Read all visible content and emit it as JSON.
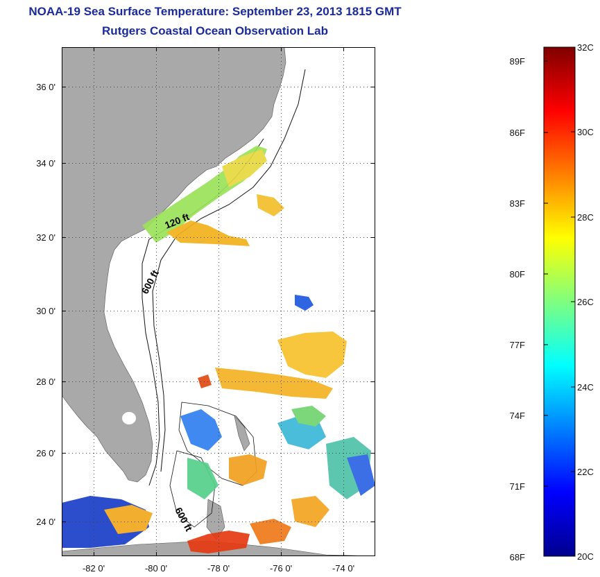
{
  "title": {
    "line1": "NOAA-19 Sea Surface Temperature:  September 23, 2013 1815 GMT",
    "line2": "Rutgers Coastal Ocean Observation Lab"
  },
  "map": {
    "lat_range": [
      23,
      37.2
    ],
    "lon_range": [
      -83,
      -73
    ],
    "lat_ticks": [
      {
        "value": 24,
        "label": "24 0'"
      },
      {
        "value": 26,
        "label": "26 0'"
      },
      {
        "value": 28,
        "label": "28 0'"
      },
      {
        "value": 30,
        "label": "30 0'"
      },
      {
        "value": 32,
        "label": "32 0'"
      },
      {
        "value": 34,
        "label": "34 0'"
      },
      {
        "value": 36,
        "label": "36 0'"
      }
    ],
    "lon_ticks": [
      {
        "value": -82,
        "label": "-82 0'"
      },
      {
        "value": -80,
        "label": "-80 0'"
      },
      {
        "value": -78,
        "label": "-78 0'"
      },
      {
        "value": -76,
        "label": "-76 0'"
      },
      {
        "value": -74,
        "label": "-74 0'"
      }
    ],
    "isobath_labels": [
      "120 ft",
      "600 ft",
      "600 ft"
    ],
    "colors": {
      "land": "#a9a9a9",
      "ocean": "#ffffff",
      "grid": "#444444"
    }
  },
  "colorbar": {
    "celsius": [
      "32C",
      "30C",
      "28C",
      "26C",
      "24C",
      "22C",
      "20C"
    ],
    "fahrenheit": [
      "89F",
      "86F",
      "83F",
      "80F",
      "77F",
      "74F",
      "71F",
      "68F"
    ],
    "range_c": [
      20,
      32
    ]
  }
}
